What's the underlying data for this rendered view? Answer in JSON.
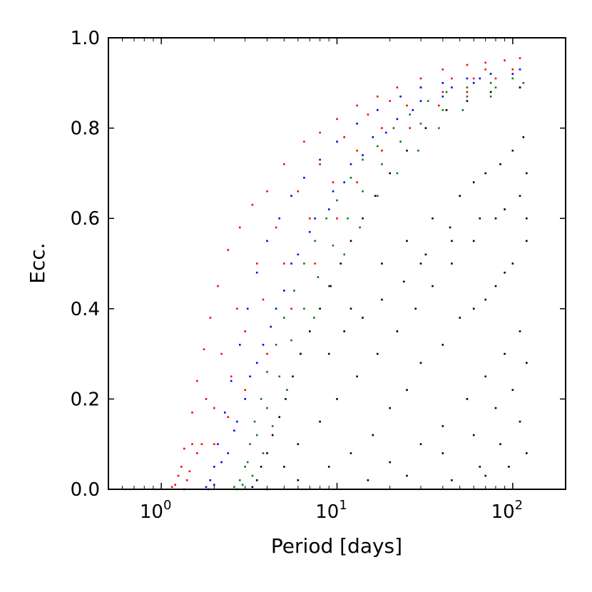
{
  "chart_data": {
    "type": "scatter",
    "xlabel": "Period [days]",
    "ylabel": "Ecc.",
    "x_scale": "log",
    "xlim": [
      0.5,
      200
    ],
    "ylim": [
      0.0,
      1.0
    ],
    "x_ticks": [
      {
        "value": 1,
        "base": "10",
        "exp": "0"
      },
      {
        "value": 10,
        "base": "10",
        "exp": "1"
      },
      {
        "value": 100,
        "base": "10",
        "exp": "2"
      }
    ],
    "y_ticks": [
      {
        "value": 0.0,
        "label": "0.0"
      },
      {
        "value": 0.2,
        "label": "0.2"
      },
      {
        "value": 0.4,
        "label": "0.4"
      },
      {
        "value": 0.6,
        "label": "0.6"
      },
      {
        "value": 0.8,
        "label": "0.8"
      },
      {
        "value": 1.0,
        "label": "1.0"
      }
    ],
    "grid": false,
    "series": [
      {
        "color": "#ff0000",
        "values": [
          [
            1.15,
            0.005
          ],
          [
            1.25,
            0.03
          ],
          [
            1.35,
            0.09
          ],
          [
            1.5,
            0.17
          ],
          [
            1.6,
            0.24
          ],
          [
            1.75,
            0.31
          ],
          [
            1.9,
            0.38
          ],
          [
            2.1,
            0.45
          ],
          [
            2.4,
            0.53
          ],
          [
            2.8,
            0.58
          ],
          [
            3.3,
            0.63
          ],
          [
            4.0,
            0.66
          ],
          [
            5.0,
            0.72
          ],
          [
            6.5,
            0.77
          ],
          [
            8.0,
            0.79
          ],
          [
            10,
            0.82
          ],
          [
            13,
            0.85
          ],
          [
            17,
            0.87
          ],
          [
            22,
            0.89
          ],
          [
            30,
            0.91
          ],
          [
            40,
            0.93
          ],
          [
            55,
            0.94
          ],
          [
            70,
            0.945
          ],
          [
            90,
            0.95
          ],
          [
            110,
            0.955
          ],
          [
            1.3,
            0.05
          ],
          [
            1.5,
            0.1
          ],
          [
            1.8,
            0.2
          ],
          [
            2.2,
            0.3
          ],
          [
            2.7,
            0.4
          ],
          [
            3.5,
            0.5
          ],
          [
            4.5,
            0.58
          ],
          [
            6,
            0.66
          ],
          [
            8,
            0.72
          ],
          [
            11,
            0.78
          ],
          [
            15,
            0.83
          ],
          [
            20,
            0.86
          ],
          [
            30,
            0.89
          ],
          [
            45,
            0.91
          ],
          [
            70,
            0.93
          ],
          [
            1.4,
            0.02
          ],
          [
            1.7,
            0.1
          ],
          [
            2.0,
            0.18
          ],
          [
            2.5,
            0.25
          ],
          [
            3.0,
            0.35
          ],
          [
            3.8,
            0.42
          ],
          [
            5.0,
            0.5
          ],
          [
            7.0,
            0.6
          ],
          [
            9.5,
            0.68
          ],
          [
            13,
            0.75
          ],
          [
            18,
            0.8
          ],
          [
            25,
            0.85
          ],
          [
            40,
            0.88
          ],
          [
            60,
            0.91
          ],
          [
            100,
            0.93
          ],
          [
            1.2,
            0.01
          ],
          [
            1.35,
            0.0
          ],
          [
            1.45,
            0.04
          ],
          [
            1.6,
            0.08
          ],
          [
            2.0,
            0.1
          ],
          [
            2.4,
            0.16
          ],
          [
            3.0,
            0.22
          ],
          [
            4.0,
            0.3
          ],
          [
            5.5,
            0.4
          ],
          [
            7.5,
            0.5
          ],
          [
            10,
            0.6
          ],
          [
            13,
            0.68
          ],
          [
            18,
            0.75
          ],
          [
            26,
            0.8
          ],
          [
            38,
            0.85
          ],
          [
            55,
            0.88
          ],
          [
            80,
            0.91
          ]
        ]
      },
      {
        "color": "#0000ff",
        "values": [
          [
            1.8,
            0.005
          ],
          [
            1.9,
            0.02
          ],
          [
            2.0,
            0.05
          ],
          [
            2.1,
            0.1
          ],
          [
            2.3,
            0.17
          ],
          [
            2.5,
            0.24
          ],
          [
            2.8,
            0.32
          ],
          [
            3.1,
            0.4
          ],
          [
            3.5,
            0.48
          ],
          [
            4.0,
            0.55
          ],
          [
            4.7,
            0.6
          ],
          [
            5.5,
            0.65
          ],
          [
            6.5,
            0.69
          ],
          [
            8,
            0.73
          ],
          [
            10,
            0.77
          ],
          [
            13,
            0.81
          ],
          [
            17,
            0.84
          ],
          [
            23,
            0.87
          ],
          [
            30,
            0.89
          ],
          [
            40,
            0.9
          ],
          [
            55,
            0.91
          ],
          [
            75,
            0.92
          ],
          [
            110,
            0.93
          ],
          [
            2.2,
            0.06
          ],
          [
            2.6,
            0.13
          ],
          [
            3.0,
            0.2
          ],
          [
            3.5,
            0.28
          ],
          [
            4.2,
            0.36
          ],
          [
            5.0,
            0.44
          ],
          [
            6.0,
            0.52
          ],
          [
            7.5,
            0.6
          ],
          [
            9.5,
            0.66
          ],
          [
            12,
            0.72
          ],
          [
            16,
            0.78
          ],
          [
            22,
            0.82
          ],
          [
            30,
            0.86
          ],
          [
            45,
            0.89
          ],
          [
            65,
            0.91
          ],
          [
            100,
            0.92
          ],
          [
            1.85,
            0.0
          ],
          [
            2.0,
            0.01
          ],
          [
            2.4,
            0.08
          ],
          [
            2.7,
            0.15
          ],
          [
            3.2,
            0.25
          ],
          [
            3.8,
            0.32
          ],
          [
            4.5,
            0.4
          ],
          [
            5.5,
            0.5
          ],
          [
            7.0,
            0.57
          ],
          [
            9.0,
            0.62
          ],
          [
            11,
            0.68
          ],
          [
            14,
            0.74
          ],
          [
            19,
            0.79
          ],
          [
            27,
            0.84
          ],
          [
            40,
            0.87
          ],
          [
            60,
            0.9
          ]
        ]
      },
      {
        "color": "#008000",
        "values": [
          [
            2.6,
            0.005
          ],
          [
            2.8,
            0.02
          ],
          [
            3.0,
            0.05
          ],
          [
            3.2,
            0.1
          ],
          [
            3.4,
            0.15
          ],
          [
            3.7,
            0.2
          ],
          [
            4.0,
            0.26
          ],
          [
            4.5,
            0.32
          ],
          [
            5.0,
            0.38
          ],
          [
            5.7,
            0.44
          ],
          [
            6.5,
            0.5
          ],
          [
            7.5,
            0.55
          ],
          [
            8.7,
            0.6
          ],
          [
            10,
            0.64
          ],
          [
            12,
            0.69
          ],
          [
            14,
            0.73
          ],
          [
            17,
            0.76
          ],
          [
            21,
            0.8
          ],
          [
            26,
            0.83
          ],
          [
            33,
            0.86
          ],
          [
            42,
            0.88
          ],
          [
            55,
            0.89
          ],
          [
            75,
            0.9
          ],
          [
            100,
            0.91
          ],
          [
            3.1,
            0.06
          ],
          [
            3.5,
            0.12
          ],
          [
            4.0,
            0.18
          ],
          [
            4.7,
            0.25
          ],
          [
            5.5,
            0.33
          ],
          [
            6.5,
            0.4
          ],
          [
            7.8,
            0.47
          ],
          [
            9.5,
            0.54
          ],
          [
            11.5,
            0.6
          ],
          [
            14,
            0.66
          ],
          [
            18,
            0.72
          ],
          [
            23,
            0.77
          ],
          [
            30,
            0.81
          ],
          [
            40,
            0.84
          ],
          [
            55,
            0.87
          ],
          [
            80,
            0.89
          ],
          [
            115,
            0.9
          ],
          [
            2.7,
            0.0
          ],
          [
            2.9,
            0.01
          ],
          [
            3.3,
            0.03
          ],
          [
            3.8,
            0.08
          ],
          [
            4.3,
            0.14
          ],
          [
            5.2,
            0.22
          ],
          [
            6.2,
            0.3
          ],
          [
            7.4,
            0.38
          ],
          [
            9.0,
            0.45
          ],
          [
            11,
            0.52
          ],
          [
            13.5,
            0.58
          ],
          [
            17,
            0.65
          ],
          [
            22,
            0.7
          ],
          [
            29,
            0.75
          ],
          [
            38,
            0.8
          ],
          [
            52,
            0.84
          ],
          [
            75,
            0.87
          ],
          [
            110,
            0.89
          ]
        ]
      },
      {
        "color": "#000000",
        "values": [
          [
            3.3,
            0.005
          ],
          [
            3.5,
            0.02
          ],
          [
            3.7,
            0.05
          ],
          [
            4.0,
            0.08
          ],
          [
            4.3,
            0.12
          ],
          [
            4.7,
            0.16
          ],
          [
            5.1,
            0.2
          ],
          [
            5.6,
            0.25
          ],
          [
            6.2,
            0.3
          ],
          [
            7.0,
            0.35
          ],
          [
            8.0,
            0.4
          ],
          [
            9.2,
            0.45
          ],
          [
            10.5,
            0.5
          ],
          [
            12,
            0.55
          ],
          [
            14,
            0.6
          ],
          [
            16.5,
            0.65
          ],
          [
            20,
            0.7
          ],
          [
            25,
            0.75
          ],
          [
            32,
            0.8
          ],
          [
            42,
            0.84
          ],
          [
            55,
            0.86
          ],
          [
            75,
            0.88
          ],
          [
            110,
            0.89
          ],
          [
            4.0,
            0.0
          ],
          [
            5.0,
            0.05
          ],
          [
            6.0,
            0.1
          ],
          [
            8.0,
            0.15
          ],
          [
            10,
            0.2
          ],
          [
            13,
            0.25
          ],
          [
            17,
            0.3
          ],
          [
            22,
            0.35
          ],
          [
            28,
            0.4
          ],
          [
            35,
            0.45
          ],
          [
            45,
            0.5
          ],
          [
            60,
            0.55
          ],
          [
            80,
            0.6
          ],
          [
            110,
            0.65
          ],
          [
            6.0,
            0.02
          ],
          [
            9.0,
            0.05
          ],
          [
            12,
            0.08
          ],
          [
            16,
            0.12
          ],
          [
            20,
            0.18
          ],
          [
            25,
            0.22
          ],
          [
            30,
            0.28
          ],
          [
            40,
            0.32
          ],
          [
            50,
            0.38
          ],
          [
            70,
            0.42
          ],
          [
            90,
            0.48
          ],
          [
            120,
            0.55
          ],
          [
            15,
            0.02
          ],
          [
            20,
            0.06
          ],
          [
            30,
            0.1
          ],
          [
            40,
            0.14
          ],
          [
            55,
            0.2
          ],
          [
            70,
            0.25
          ],
          [
            90,
            0.3
          ],
          [
            110,
            0.35
          ],
          [
            25,
            0.03
          ],
          [
            40,
            0.08
          ],
          [
            60,
            0.12
          ],
          [
            80,
            0.18
          ],
          [
            100,
            0.22
          ],
          [
            120,
            0.28
          ],
          [
            45,
            0.02
          ],
          [
            65,
            0.05
          ],
          [
            85,
            0.1
          ],
          [
            110,
            0.15
          ],
          [
            70,
            0.03
          ],
          [
            95,
            0.05
          ],
          [
            120,
            0.08
          ],
          [
            12,
            0.4
          ],
          [
            18,
            0.5
          ],
          [
            25,
            0.55
          ],
          [
            35,
            0.6
          ],
          [
            50,
            0.65
          ],
          [
            70,
            0.7
          ],
          [
            100,
            0.75
          ],
          [
            30,
            0.5
          ],
          [
            45,
            0.55
          ],
          [
            65,
            0.6
          ],
          [
            90,
            0.62
          ],
          [
            120,
            0.7
          ],
          [
            60,
            0.4
          ],
          [
            80,
            0.45
          ],
          [
            100,
            0.5
          ],
          [
            120,
            0.6
          ],
          [
            9,
            0.3
          ],
          [
            11,
            0.35
          ],
          [
            14,
            0.38
          ],
          [
            18,
            0.42
          ],
          [
            24,
            0.46
          ],
          [
            32,
            0.52
          ],
          [
            44,
            0.58
          ],
          [
            60,
            0.68
          ],
          [
            85,
            0.72
          ],
          [
            115,
            0.78
          ]
        ]
      }
    ]
  }
}
